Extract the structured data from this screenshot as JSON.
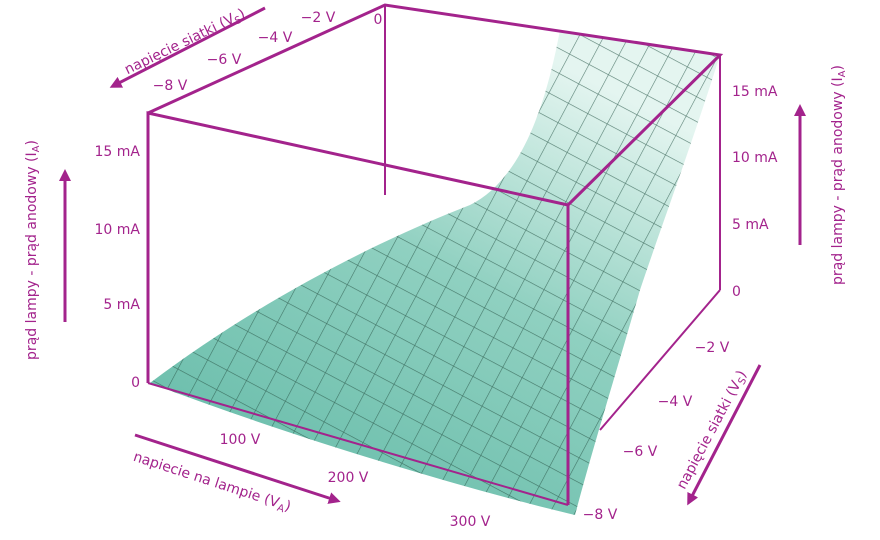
{
  "current_axis_left": {
    "label": "prąd lampy - prąd anodowy (I",
    "label_sub": "A",
    "label_end": ")",
    "ticks": [
      "0",
      "5 mA",
      "10 mA",
      "15 mA"
    ]
  },
  "current_axis_right": {
    "label": "prąd lampy - prąd anodowy (I",
    "label_sub": "A",
    "label_end": ")",
    "ticks": [
      "0",
      "5 mA",
      "10 mA",
      "15 mA"
    ]
  },
  "grid_axis_top": {
    "label": "napięcie siatki (V",
    "label_sub": "S",
    "label_end": ")",
    "ticks": [
      "0",
      "−2 V",
      "−4 V",
      "−6 V",
      "−8 V"
    ]
  },
  "grid_axis_right": {
    "label": "napięcie siatki (V",
    "label_sub": "S",
    "label_end": ")",
    "ticks": [
      "−2 V",
      "−4 V",
      "−6 V",
      "−8 V"
    ]
  },
  "anode_axis": {
    "label": "napiecie na lampie (V",
    "label_sub": "A",
    "label_end": ")",
    "ticks": [
      "100 V",
      "200 V",
      "300 V"
    ]
  }
}
